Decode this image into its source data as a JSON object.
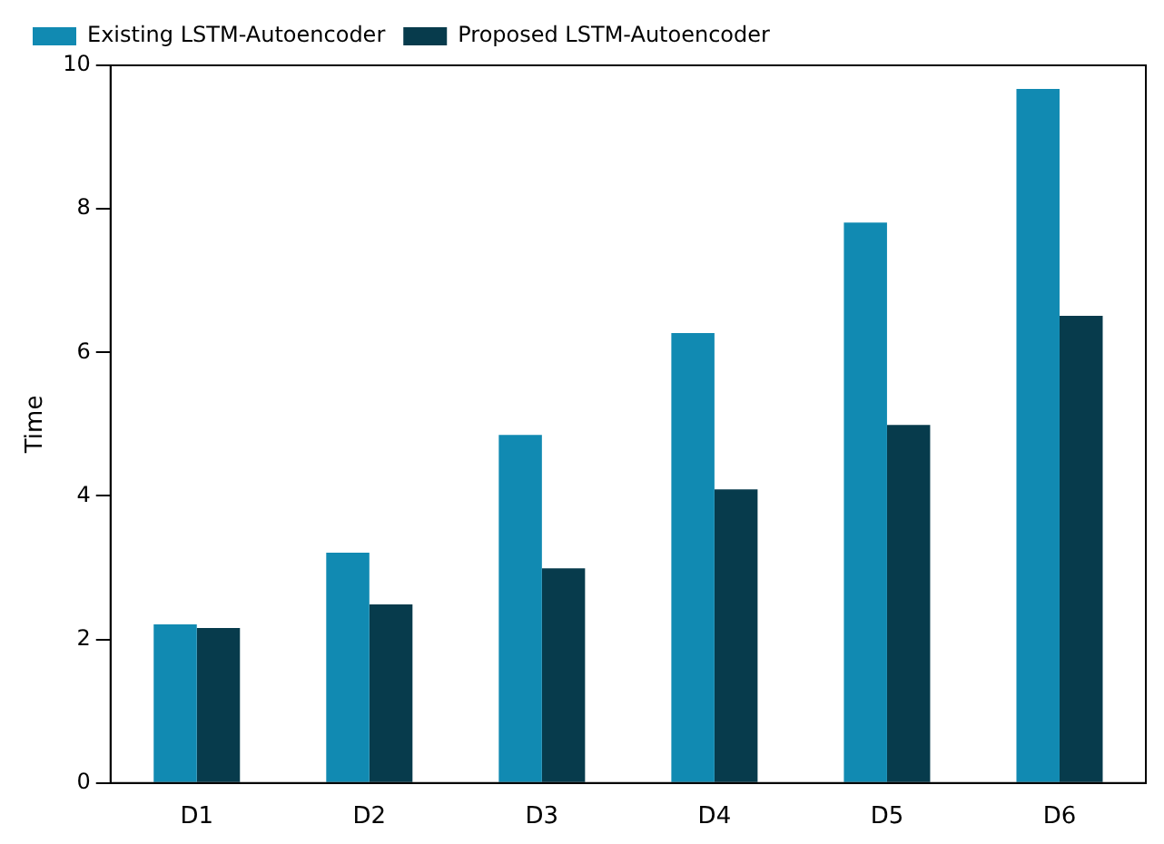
{
  "chart_data": {
    "type": "bar",
    "ylabel": "Time",
    "categories": [
      "D1",
      "D2",
      "D3",
      "D4",
      "D5",
      "D6"
    ],
    "series": [
      {
        "name": "Existing LSTM-Autoencoder",
        "color": "#118ab2",
        "values": [
          2.21,
          3.21,
          4.85,
          6.27,
          7.81,
          9.67
        ]
      },
      {
        "name": "Proposed LSTM-Autoencoder",
        "color": "#073b4c",
        "values": [
          2.16,
          2.49,
          2.99,
          4.09,
          4.99,
          6.51
        ]
      }
    ],
    "ylim": [
      0,
      10
    ],
    "yticks": [
      0,
      2,
      4,
      6,
      8,
      10
    ],
    "legend": "top left",
    "grid": false
  }
}
